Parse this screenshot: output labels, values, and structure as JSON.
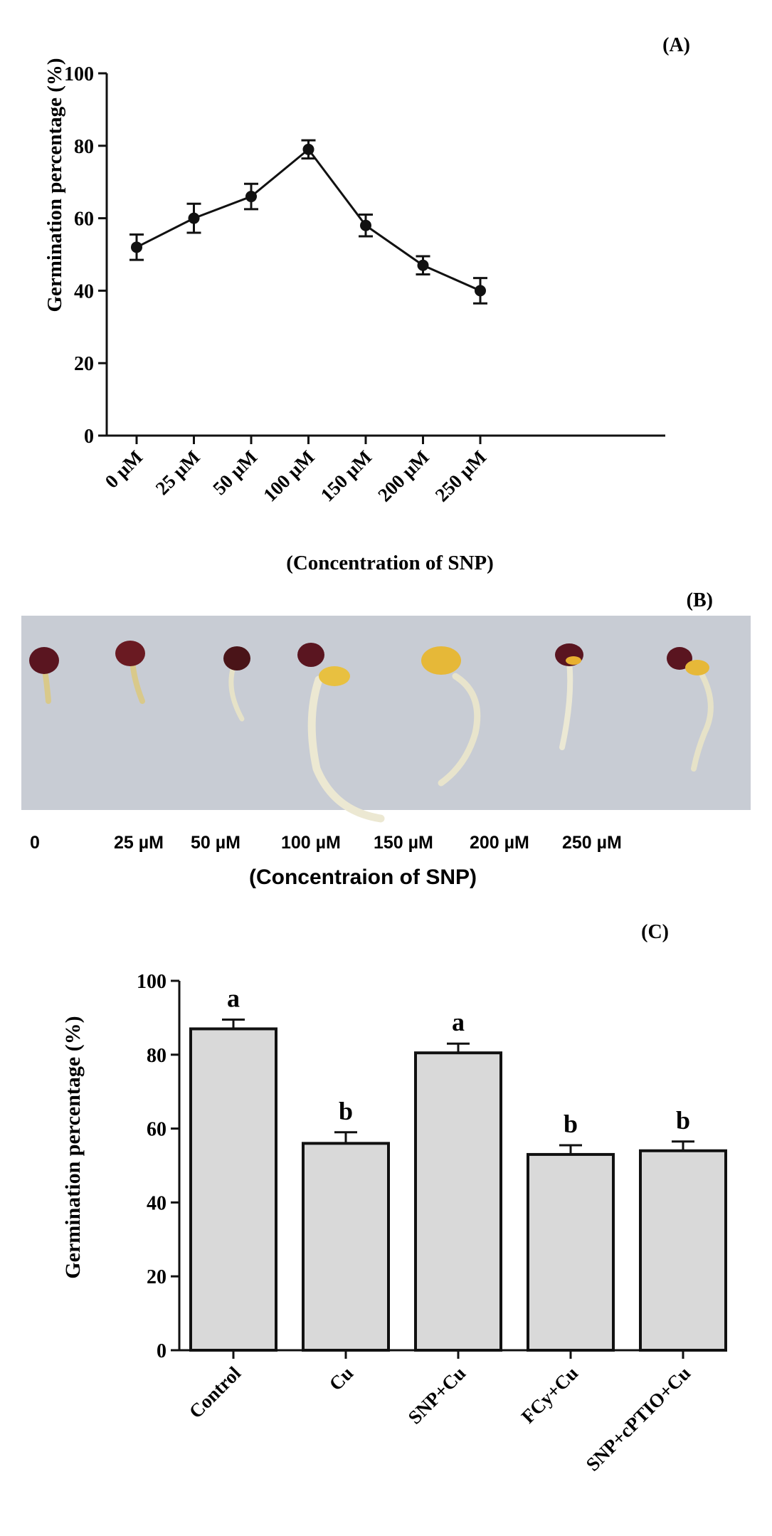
{
  "chart_data": [
    {
      "panel_label": "(A)",
      "type": "line",
      "categories": [
        "0 µM",
        "25 µM",
        "50 µM",
        "100 µM",
        "150 µM",
        "200 µM",
        "250 µM"
      ],
      "values": [
        52,
        60,
        66,
        79,
        58,
        47,
        40
      ],
      "errors": [
        3.5,
        4,
        3.5,
        2.5,
        3,
        2.5,
        3.5
      ],
      "ylabel": "Germination percentage (%)",
      "xlabel": "(Concentration of SNP)",
      "ylim": [
        0,
        100
      ],
      "yticks": [
        0,
        20,
        40,
        60,
        80,
        100
      ],
      "grid": false
    },
    {
      "panel_label": "(C)",
      "type": "bar",
      "categories": [
        "Control",
        "Cu",
        "SNP+Cu",
        "FCy+Cu",
        "SNP+cPTIO+Cu"
      ],
      "values": [
        87,
        56,
        80.5,
        53,
        54
      ],
      "errors": [
        2.5,
        3,
        2.5,
        2.5,
        2.5
      ],
      "significance": [
        "a",
        "b",
        "a",
        "b",
        "b"
      ],
      "ylabel": "Germination percentage (%)",
      "xlabel": "",
      "ylim": [
        0,
        100
      ],
      "yticks": [
        0,
        20,
        40,
        60,
        80,
        100
      ],
      "bar_color": "#d9d9d9",
      "grid": false
    }
  ],
  "photo_panel": {
    "panel_label": "(B)",
    "labels": [
      "0",
      "25 µM",
      "50 µM",
      "100 µM",
      "150 µM",
      "200 µM",
      "250 µM"
    ],
    "caption": "(Concentraion of SNP)",
    "background_color": "#c8ccd4"
  }
}
